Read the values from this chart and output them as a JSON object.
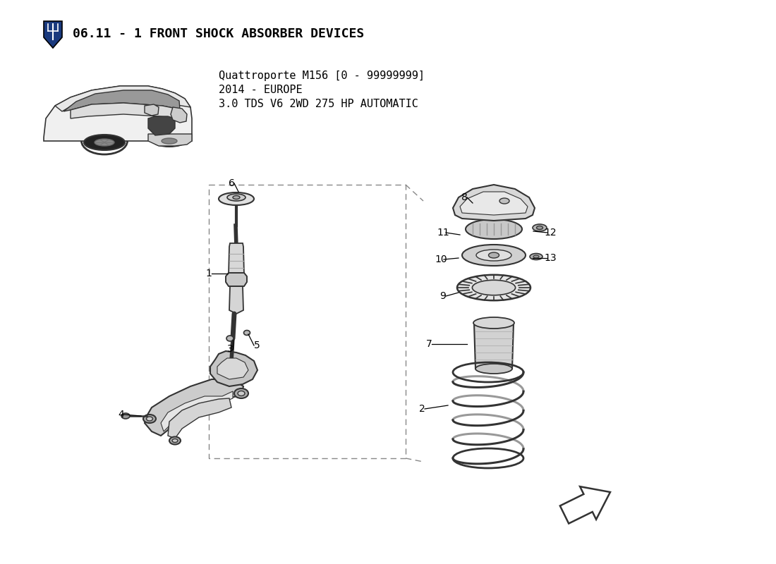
{
  "title": "06.11 - 1 FRONT SHOCK ABSORBER DEVICES",
  "subtitle_line1": "Quattroporte M156 [0 - 99999999]",
  "subtitle_line2": "2014 - EUROPE",
  "subtitle_line3": "3.0 TDS V6 2WD 275 HP AUTOMATIC",
  "bg_color": "#ffffff",
  "line_color": "#333333",
  "light_gray": "#cccccc",
  "mid_gray": "#aaaaaa",
  "dark_gray": "#555555"
}
